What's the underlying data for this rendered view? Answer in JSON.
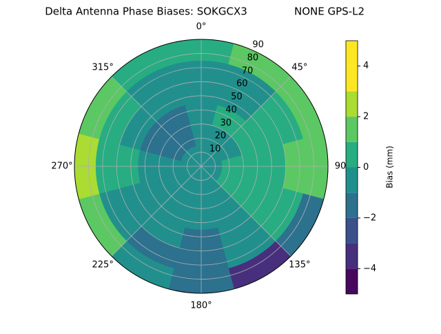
{
  "chart_data": {
    "type": "polar_contour",
    "title": "Delta Antenna Phase Biases: SOKGCX3",
    "subtitle": "NONE GPS-L2",
    "colorbar_label": "Bias (mm)",
    "azimuth": [
      0,
      30,
      60,
      90,
      120,
      150,
      180,
      210,
      240,
      270,
      300,
      330
    ],
    "r": [
      7.5,
      22.5,
      37.5,
      52.5,
      67.5,
      82.5
    ],
    "values": [
      [
        -0.5,
        -0.5,
        -0.5,
        -0.5,
        -0.5,
        -0.5,
        -0.5,
        -0.5,
        -0.5,
        -0.5,
        -0.5,
        -0.5
      ],
      [
        -0.5,
        -0.5,
        -0.5,
        0.5,
        0.5,
        -0.5,
        -0.5,
        -0.5,
        -0.5,
        -0.5,
        -1.5,
        -1.5
      ],
      [
        -0.5,
        0.5,
        0.5,
        0.5,
        0.5,
        -0.5,
        -0.5,
        -0.5,
        -0.5,
        -0.5,
        -1.5,
        -1.5
      ],
      [
        -0.5,
        -0.5,
        0.5,
        0.5,
        0.5,
        -0.5,
        -1.5,
        -0.5,
        -0.5,
        0.5,
        -0.5,
        -0.5
      ],
      [
        -0.5,
        -0.5,
        0.5,
        1.5,
        0.5,
        -0.5,
        -1.5,
        -1.5,
        -0.5,
        0.5,
        0.5,
        -0.5
      ],
      [
        0.5,
        1.5,
        1.5,
        1.5,
        -1.5,
        -3.5,
        -1.5,
        -0.5,
        1.5,
        2.5,
        1.5,
        0.5
      ]
    ],
    "levels": [
      -5,
      -4,
      -3,
      -2,
      -1,
      0,
      1,
      2,
      3,
      4,
      5
    ],
    "colors": [
      "#46085c",
      "#472f7d",
      "#3b518b",
      "#2c718e",
      "#21908d",
      "#27ad81",
      "#5cc863",
      "#aadc32",
      "#fde725",
      "#fde725"
    ],
    "rlim": [
      0,
      90
    ],
    "rticks": [
      10,
      20,
      30,
      40,
      50,
      60,
      70,
      80,
      90
    ],
    "thetaticks": [
      {
        "value": 0,
        "label": "0°"
      },
      {
        "value": 45,
        "label": "45°"
      },
      {
        "value": 90,
        "label": "90"
      },
      {
        "value": 135,
        "label": "135°"
      },
      {
        "value": 180,
        "label": "180°"
      },
      {
        "value": 225,
        "label": "225°"
      },
      {
        "value": 270,
        "label": "270°"
      },
      {
        "value": 315,
        "label": "315°"
      }
    ],
    "clim": [
      -5,
      5
    ],
    "cticks": [
      {
        "value": -4,
        "label": "−4"
      },
      {
        "value": -2,
        "label": "−2"
      },
      0,
      2,
      4
    ],
    "grid": true
  }
}
